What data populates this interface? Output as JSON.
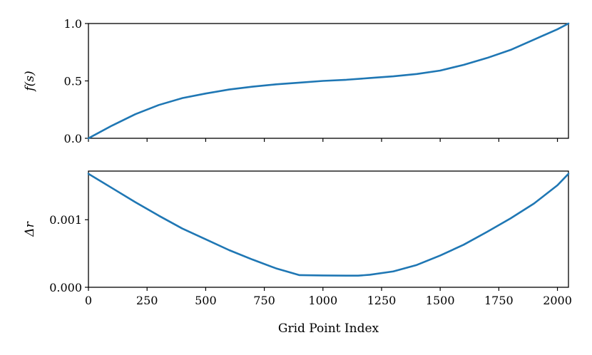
{
  "chart_data": [
    {
      "type": "line",
      "ylabel": "f(s)",
      "xlabel": "",
      "xlim": [
        0,
        2047
      ],
      "ylim": [
        0,
        1.0
      ],
      "x_ticks": [
        0,
        250,
        500,
        750,
        1000,
        1250,
        1500,
        1750,
        2000
      ],
      "x_tick_labels_shown": false,
      "y_ticks": [
        0.0,
        0.5,
        1.0
      ],
      "y_tick_labels": [
        "0.0",
        "0.5",
        "1.0"
      ],
      "grid": false,
      "color": "#1f77b4",
      "series": [
        {
          "x": [
            0,
            100,
            200,
            300,
            400,
            500,
            600,
            700,
            800,
            900,
            1000,
            1100,
            1200,
            1300,
            1400,
            1500,
            1600,
            1700,
            1800,
            1900,
            2000,
            2047
          ],
          "values": [
            0.0,
            0.11,
            0.21,
            0.29,
            0.35,
            0.39,
            0.425,
            0.45,
            0.47,
            0.485,
            0.5,
            0.51,
            0.525,
            0.54,
            0.56,
            0.59,
            0.64,
            0.7,
            0.77,
            0.86,
            0.95,
            1.0
          ]
        }
      ]
    },
    {
      "type": "line",
      "ylabel": "Δr",
      "xlabel": "Grid Point Index",
      "xlim": [
        0,
        2047
      ],
      "ylim": [
        0,
        0.00172
      ],
      "x_ticks": [
        0,
        250,
        500,
        750,
        1000,
        1250,
        1500,
        1750,
        2000
      ],
      "x_tick_labels": [
        "0",
        "250",
        "500",
        "750",
        "1000",
        "1250",
        "1500",
        "1750",
        "2000"
      ],
      "y_ticks": [
        0.0,
        0.001
      ],
      "y_tick_labels": [
        "0.000",
        "0.001"
      ],
      "grid": false,
      "color": "#1f77b4",
      "series": [
        {
          "x": [
            0,
            100,
            200,
            300,
            400,
            500,
            600,
            700,
            800,
            900,
            1000,
            1100,
            1150,
            1200,
            1300,
            1400,
            1500,
            1600,
            1700,
            1800,
            1900,
            2000,
            2047
          ],
          "values": [
            0.00168,
            0.00147,
            0.00126,
            0.00106,
            0.00087,
            0.00071,
            0.00055,
            0.00041,
            0.00028,
            0.00018,
            0.000175,
            0.000172,
            0.000172,
            0.000185,
            0.000235,
            0.00033,
            0.00047,
            0.00063,
            0.00082,
            0.00102,
            0.00124,
            0.00151,
            0.00168
          ]
        }
      ]
    }
  ]
}
